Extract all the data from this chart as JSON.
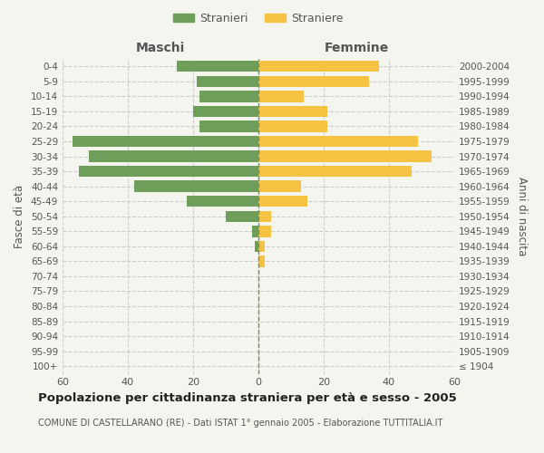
{
  "age_groups": [
    "100+",
    "95-99",
    "90-94",
    "85-89",
    "80-84",
    "75-79",
    "70-74",
    "65-69",
    "60-64",
    "55-59",
    "50-54",
    "45-49",
    "40-44",
    "35-39",
    "30-34",
    "25-29",
    "20-24",
    "15-19",
    "10-14",
    "5-9",
    "0-4"
  ],
  "birth_years": [
    "≤ 1904",
    "1905-1909",
    "1910-1914",
    "1915-1919",
    "1920-1924",
    "1925-1929",
    "1930-1934",
    "1935-1939",
    "1940-1944",
    "1945-1949",
    "1950-1954",
    "1955-1959",
    "1960-1964",
    "1965-1969",
    "1970-1974",
    "1975-1979",
    "1980-1984",
    "1985-1989",
    "1990-1994",
    "1995-1999",
    "2000-2004"
  ],
  "maschi": [
    0,
    0,
    0,
    0,
    0,
    0,
    0,
    0,
    1,
    2,
    10,
    22,
    38,
    55,
    52,
    57,
    18,
    20,
    18,
    19,
    25
  ],
  "femmine": [
    0,
    0,
    0,
    0,
    0,
    0,
    0,
    2,
    2,
    4,
    4,
    15,
    13,
    47,
    53,
    49,
    21,
    21,
    14,
    34,
    37
  ],
  "male_color": "#6d9e5a",
  "female_color": "#f5c242",
  "grid_color": "#cccccc",
  "bg_color": "#f5f5f0",
  "text_color": "#555555",
  "center_line_color": "#888855",
  "title": "Popolazione per cittadinanza straniera per età e sesso - 2005",
  "subtitle": "COMUNE DI CASTELLARANO (RE) - Dati ISTAT 1° gennaio 2005 - Elaborazione TUTTITALIA.IT",
  "xlabel_left": "Maschi",
  "xlabel_right": "Femmine",
  "ylabel_left": "Fasce di età",
  "ylabel_right": "Anni di nascita",
  "legend_male": "Stranieri",
  "legend_female": "Straniere",
  "xlim": 60
}
